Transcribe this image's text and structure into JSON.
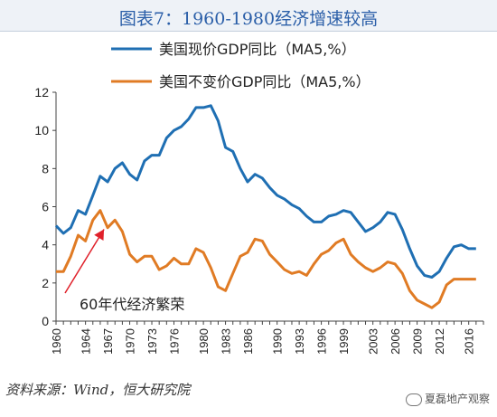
{
  "page": {
    "title": "图表7：1960-1980经济增速较高",
    "source": "资料来源：Wind，恒大研究院",
    "watermark": "夏磊地产观察",
    "watermark_icon": "wechat-icon"
  },
  "chart_data": {
    "type": "line",
    "ylim": [
      0,
      12
    ],
    "yticks": [
      "0",
      "2",
      "4",
      "6",
      "8",
      "10",
      "12"
    ],
    "xlim": [
      1960,
      2018
    ],
    "xticks": [
      "1960",
      "1964",
      "1967",
      "1970",
      "1973",
      "1976",
      "1980",
      "1983",
      "1986",
      "1990",
      "1993",
      "1996",
      "1999",
      "2003",
      "2006",
      "2009",
      "2012",
      "2016"
    ],
    "grid": false,
    "legend_position": "top-center",
    "series": [
      {
        "name": "美国现价GDP同比（MA5,%）",
        "color": "#1f6fb3",
        "points": [
          [
            1960,
            5.0
          ],
          [
            1961,
            4.6
          ],
          [
            1962,
            4.9
          ],
          [
            1963,
            5.8
          ],
          [
            1964,
            5.6
          ],
          [
            1965,
            6.6
          ],
          [
            1966,
            7.6
          ],
          [
            1967,
            7.3
          ],
          [
            1968,
            8.0
          ],
          [
            1969,
            8.3
          ],
          [
            1970,
            7.7
          ],
          [
            1971,
            7.4
          ],
          [
            1972,
            8.4
          ],
          [
            1973,
            8.7
          ],
          [
            1974,
            8.7
          ],
          [
            1975,
            9.6
          ],
          [
            1976,
            10.0
          ],
          [
            1977,
            10.2
          ],
          [
            1978,
            10.6
          ],
          [
            1979,
            11.2
          ],
          [
            1980,
            11.2
          ],
          [
            1981,
            11.3
          ],
          [
            1982,
            10.5
          ],
          [
            1983,
            9.1
          ],
          [
            1984,
            8.9
          ],
          [
            1985,
            8.0
          ],
          [
            1986,
            7.3
          ],
          [
            1987,
            7.7
          ],
          [
            1988,
            7.5
          ],
          [
            1989,
            7.0
          ],
          [
            1990,
            6.6
          ],
          [
            1991,
            6.4
          ],
          [
            1992,
            6.1
          ],
          [
            1993,
            5.9
          ],
          [
            1994,
            5.5
          ],
          [
            1995,
            5.2
          ],
          [
            1996,
            5.2
          ],
          [
            1997,
            5.5
          ],
          [
            1998,
            5.6
          ],
          [
            1999,
            5.8
          ],
          [
            2000,
            5.7
          ],
          [
            2001,
            5.2
          ],
          [
            2002,
            4.7
          ],
          [
            2003,
            4.9
          ],
          [
            2004,
            5.2
          ],
          [
            2005,
            5.7
          ],
          [
            2006,
            5.6
          ],
          [
            2007,
            4.8
          ],
          [
            2008,
            3.8
          ],
          [
            2009,
            2.9
          ],
          [
            2010,
            2.4
          ],
          [
            2011,
            2.3
          ],
          [
            2012,
            2.6
          ],
          [
            2013,
            3.3
          ],
          [
            2014,
            3.9
          ],
          [
            2015,
            4.0
          ],
          [
            2016,
            3.8
          ],
          [
            2017,
            3.8
          ]
        ]
      },
      {
        "name": "美国不变价GDP同比（MA5,%）",
        "color": "#e07b24",
        "points": [
          [
            1960,
            2.6
          ],
          [
            1961,
            2.6
          ],
          [
            1962,
            3.4
          ],
          [
            1963,
            4.5
          ],
          [
            1964,
            4.2
          ],
          [
            1965,
            5.3
          ],
          [
            1966,
            5.8
          ],
          [
            1967,
            4.9
          ],
          [
            1968,
            5.3
          ],
          [
            1969,
            4.7
          ],
          [
            1970,
            3.5
          ],
          [
            1971,
            3.1
          ],
          [
            1972,
            3.4
          ],
          [
            1973,
            3.4
          ],
          [
            1974,
            2.7
          ],
          [
            1975,
            2.9
          ],
          [
            1976,
            3.3
          ],
          [
            1977,
            3.0
          ],
          [
            1978,
            3.0
          ],
          [
            1979,
            3.8
          ],
          [
            1980,
            3.6
          ],
          [
            1981,
            2.8
          ],
          [
            1982,
            1.8
          ],
          [
            1983,
            1.6
          ],
          [
            1984,
            2.5
          ],
          [
            1985,
            3.4
          ],
          [
            1986,
            3.6
          ],
          [
            1987,
            4.3
          ],
          [
            1988,
            4.2
          ],
          [
            1989,
            3.5
          ],
          [
            1990,
            3.1
          ],
          [
            1991,
            2.7
          ],
          [
            1992,
            2.5
          ],
          [
            1993,
            2.6
          ],
          [
            1994,
            2.4
          ],
          [
            1995,
            3.0
          ],
          [
            1996,
            3.5
          ],
          [
            1997,
            3.7
          ],
          [
            1998,
            4.1
          ],
          [
            1999,
            4.3
          ],
          [
            2000,
            3.5
          ],
          [
            2001,
            3.1
          ],
          [
            2002,
            2.8
          ],
          [
            2003,
            2.6
          ],
          [
            2004,
            2.8
          ],
          [
            2005,
            3.1
          ],
          [
            2006,
            3.0
          ],
          [
            2007,
            2.5
          ],
          [
            2008,
            1.6
          ],
          [
            2009,
            1.1
          ],
          [
            2010,
            0.9
          ],
          [
            2011,
            0.7
          ],
          [
            2012,
            1.0
          ],
          [
            2013,
            1.9
          ],
          [
            2014,
            2.2
          ],
          [
            2015,
            2.2
          ],
          [
            2016,
            2.2
          ],
          [
            2017,
            2.2
          ]
        ]
      }
    ],
    "annotation": {
      "text": "60年代经济繁荣",
      "point_at": [
        1967,
        5.1
      ],
      "color": "#e0202a"
    }
  }
}
